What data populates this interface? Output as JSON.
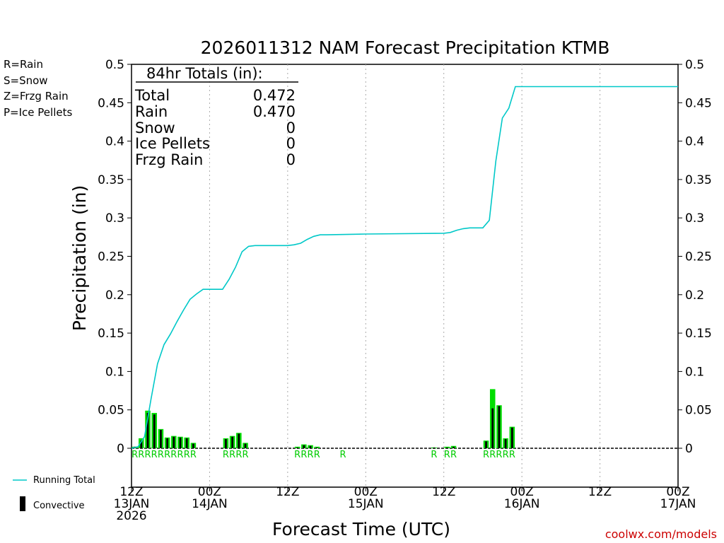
{
  "chart_data": {
    "type": "bar",
    "title": "2026011312 NAM Forecast Precipitation KTMB",
    "xlabel": "Forecast Time (UTC)",
    "ylabel": "Precipitation (in)",
    "ylim": [
      0,
      0.5
    ],
    "xlim_hours": [
      0,
      84
    ],
    "y_ticks": [
      {
        "v": 0,
        "label": "0"
      },
      {
        "v": 0.05,
        "label": "0.05"
      },
      {
        "v": 0.1,
        "label": "0.1"
      },
      {
        "v": 0.15,
        "label": "0.15"
      },
      {
        "v": 0.2,
        "label": "0.2"
      },
      {
        "v": 0.25,
        "label": "0.25"
      },
      {
        "v": 0.3,
        "label": "0.3"
      },
      {
        "v": 0.35,
        "label": "0.35"
      },
      {
        "v": 0.4,
        "label": "0.4"
      },
      {
        "v": 0.45,
        "label": "0.45"
      },
      {
        "v": 0.5,
        "label": "0.5"
      }
    ],
    "x_ticks": [
      {
        "h": 0,
        "lines": [
          "12Z",
          "13JAN",
          "2026"
        ]
      },
      {
        "h": 12,
        "lines": [
          "00Z",
          "14JAN"
        ]
      },
      {
        "h": 24,
        "lines": [
          "12Z"
        ]
      },
      {
        "h": 36,
        "lines": [
          "00Z",
          "15JAN"
        ]
      },
      {
        "h": 48,
        "lines": [
          "12Z"
        ]
      },
      {
        "h": 60,
        "lines": [
          "00Z",
          "16JAN"
        ]
      },
      {
        "h": 72,
        "lines": [
          "12Z"
        ]
      },
      {
        "h": 84,
        "lines": [
          "00Z",
          "17JAN"
        ]
      }
    ],
    "grid_hours": [
      12,
      24,
      36,
      48,
      60,
      72
    ],
    "hourly_bars": {
      "hours": [
        1,
        2,
        3,
        4,
        5,
        6,
        7,
        8,
        9,
        10,
        15,
        16,
        17,
        18,
        26,
        27,
        28,
        29,
        47,
        49,
        50,
        55,
        56,
        57,
        58,
        59
      ],
      "total": [
        0.002,
        0.013,
        0.049,
        0.046,
        0.025,
        0.014,
        0.016,
        0.015,
        0.014,
        0.007,
        0.013,
        0.016,
        0.02,
        0.007,
        0.002,
        0.005,
        0.004,
        0.002,
        0.001,
        0.002,
        0.003,
        0.01,
        0.077,
        0.056,
        0.013,
        0.028
      ],
      "convective": [
        0.002,
        0.01,
        0.046,
        0.044,
        0.024,
        0.013,
        0.015,
        0.014,
        0.013,
        0.006,
        0.012,
        0.015,
        0.019,
        0.006,
        0.001,
        0.004,
        0.003,
        0.001,
        0.001,
        0.001,
        0.002,
        0.009,
        0.052,
        0.055,
        0.012,
        0.027
      ]
    },
    "running_total": {
      "hours": [
        0,
        1,
        2,
        3,
        4,
        5,
        6,
        7,
        8,
        9,
        10,
        11,
        12,
        13,
        14,
        15,
        16,
        17,
        18,
        19,
        20,
        21,
        22,
        23,
        24,
        25,
        26,
        27,
        28,
        29,
        30,
        36,
        48,
        49,
        50,
        51,
        52,
        53,
        54,
        55,
        56,
        57,
        58,
        59,
        84
      ],
      "values": [
        0,
        0.002,
        0.015,
        0.064,
        0.11,
        0.135,
        0.149,
        0.165,
        0.18,
        0.194,
        0.201,
        0.207,
        0.207,
        0.207,
        0.207,
        0.22,
        0.236,
        0.256,
        0.263,
        0.264,
        0.264,
        0.264,
        0.264,
        0.264,
        0.264,
        0.265,
        0.267,
        0.272,
        0.276,
        0.278,
        0.278,
        0.279,
        0.28,
        0.281,
        0.284,
        0.286,
        0.287,
        0.287,
        0.287,
        0.297,
        0.374,
        0.43,
        0.443,
        0.471,
        0.471
      ]
    },
    "precip_type_labels": [
      {
        "h": 1,
        "t": "R"
      },
      {
        "h": 2,
        "t": "R"
      },
      {
        "h": 3,
        "t": "R"
      },
      {
        "h": 4,
        "t": "R"
      },
      {
        "h": 5,
        "t": "R"
      },
      {
        "h": 6,
        "t": "R"
      },
      {
        "h": 7,
        "t": "R"
      },
      {
        "h": 8,
        "t": "R"
      },
      {
        "h": 9,
        "t": "R"
      },
      {
        "h": 10,
        "t": "R"
      },
      {
        "h": 15,
        "t": "R"
      },
      {
        "h": 16,
        "t": "R"
      },
      {
        "h": 17,
        "t": "R"
      },
      {
        "h": 18,
        "t": "R"
      },
      {
        "h": 26,
        "t": "R"
      },
      {
        "h": 27,
        "t": "R"
      },
      {
        "h": 28,
        "t": "R"
      },
      {
        "h": 29,
        "t": "R"
      },
      {
        "h": 33,
        "t": "R"
      },
      {
        "h": 47,
        "t": "R"
      },
      {
        "h": 49,
        "t": "R"
      },
      {
        "h": 50,
        "t": "R"
      },
      {
        "h": 55,
        "t": "R"
      },
      {
        "h": 56,
        "t": "R"
      },
      {
        "h": 57,
        "t": "R"
      },
      {
        "h": 58,
        "t": "R"
      },
      {
        "h": 59,
        "t": "R"
      }
    ],
    "totals_box": {
      "header": "84hr Totals (in):",
      "rows": [
        {
          "label": "Total",
          "value": "0.472"
        },
        {
          "label": "Rain",
          "value": "0.470"
        },
        {
          "label": "Snow",
          "value": "0"
        },
        {
          "label": "Ice Pellets",
          "value": "0"
        },
        {
          "label": "Frzg Rain",
          "value": "0"
        }
      ]
    },
    "type_legend": [
      {
        "text": "R=Rain",
        "color": "#00cc00"
      },
      {
        "text": "S=Snow",
        "color": "#3355ee"
      },
      {
        "text": "Z=Frzg Rain",
        "color": "#ee8833"
      },
      {
        "text": "P=Ice Pellets",
        "color": "#dd1188"
      }
    ],
    "series_legend": {
      "running_total": "Running Total",
      "convective": "Convective"
    },
    "credit": "coolwx.com/models",
    "colors": {
      "bar_total": "#00dd00",
      "bar_convective": "#000000",
      "running_total": "#00c8c8",
      "grid": "#aaaaaa",
      "credit": "#cc0000"
    }
  }
}
